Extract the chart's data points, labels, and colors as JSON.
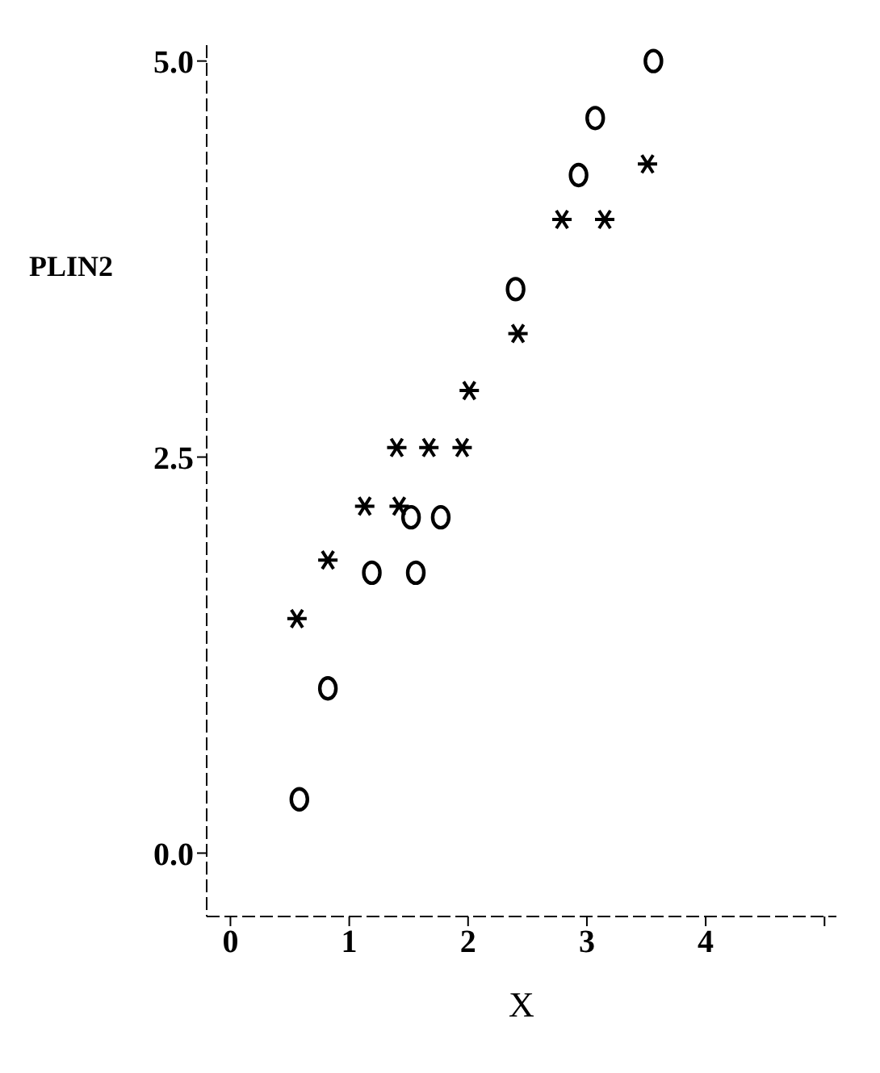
{
  "chart_data": {
    "type": "scatter",
    "xlabel": "X",
    "ylabel": "PLIN2",
    "xlim": [
      -0.2,
      5.1
    ],
    "ylim": [
      -0.4,
      5.1
    ],
    "xticks": [
      0,
      1,
      2,
      3,
      4,
      {
        "value": 5,
        "label": null
      }
    ],
    "yticks": [
      {
        "value": 0,
        "label": "0.0"
      },
      {
        "value": 2.5,
        "label": "2.5"
      },
      {
        "value": 5,
        "label": "5.0"
      }
    ],
    "grid": false,
    "legend": false,
    "series": [
      {
        "color": "#000000",
        "marker": "circle",
        "x": [
          3.56,
          3.07,
          2.93,
          2.4,
          1.52,
          1.77,
          1.19,
          1.56,
          0.82,
          0.58
        ],
        "values": [
          5.0,
          4.64,
          4.28,
          3.56,
          2.12,
          2.12,
          1.77,
          1.77,
          1.04,
          0.34
        ]
      },
      {
        "color": "#000000",
        "marker": "cross",
        "x": [
          3.51,
          2.79,
          3.15,
          2.42,
          2.01,
          1.4,
          1.67,
          1.95,
          1.13,
          1.42,
          0.82,
          0.56
        ],
        "values": [
          4.35,
          4.0,
          4.0,
          3.28,
          2.92,
          2.56,
          2.56,
          2.56,
          2.19,
          2.19,
          1.85,
          1.48
        ]
      }
    ]
  }
}
